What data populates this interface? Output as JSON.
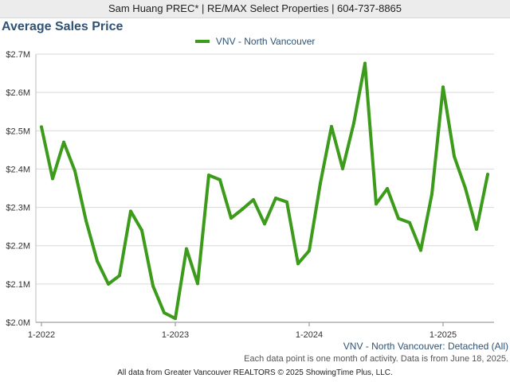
{
  "header": {
    "text": "Sam Huang PREC* | RE/MAX Select Properties | 604-737-8865"
  },
  "chart_data": {
    "type": "line",
    "title": "Average Sales Price",
    "series": [
      {
        "name": "VNV - North Vancouver",
        "color": "#3d9b1c",
        "values": [
          2.51,
          2.375,
          2.47,
          2.395,
          2.265,
          2.16,
          2.1,
          2.122,
          2.29,
          2.24,
          2.095,
          2.025,
          2.01,
          2.192,
          2.101,
          2.384,
          2.372,
          2.272,
          2.295,
          2.32,
          2.257,
          2.324,
          2.314,
          2.153,
          2.187,
          2.363,
          2.511,
          2.401,
          2.52,
          2.676,
          2.309,
          2.349,
          2.271,
          2.26,
          2.188,
          2.335,
          2.614,
          2.433,
          2.35,
          2.243,
          2.386
        ]
      }
    ],
    "x_start": "2022-01",
    "x_interval": "month",
    "x_ticks": [
      "1-2022",
      "1-2023",
      "1-2024",
      "1-2025"
    ],
    "y_ticks": [
      "$2.0M",
      "$2.1M",
      "$2.2M",
      "$2.3M",
      "$2.4M",
      "$2.5M",
      "$2.6M",
      "$2.7M"
    ],
    "ylim": [
      2.0,
      2.7
    ],
    "y_unit": "$M",
    "grid": true,
    "legend_position": "top-center"
  },
  "series_label": "VNV - North Vancouver: Detached (All)",
  "note": "Each data point is one month of activity. Data is from June 18, 2025.",
  "footer": "All data from Greater Vancouver REALTORS © 2025 ShowingTime Plus, LLC."
}
